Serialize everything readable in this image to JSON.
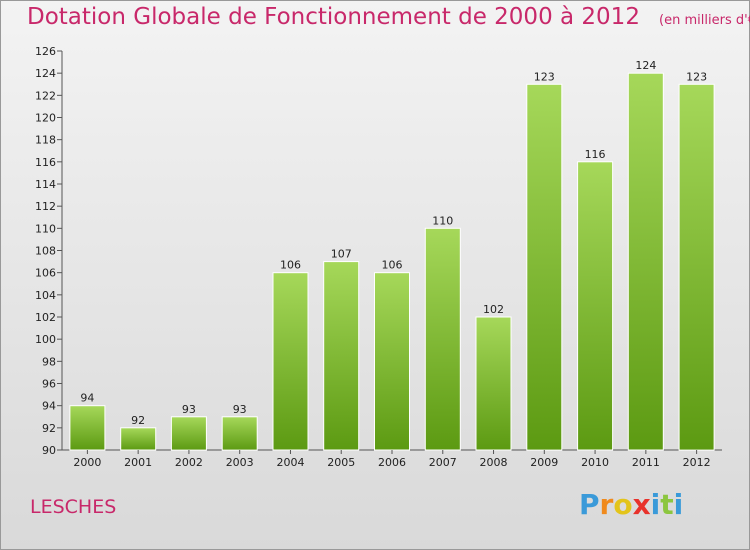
{
  "title": "Dotation Globale de Fonctionnement de 2000 à 2012",
  "subtitle": "(en milliers d'€)",
  "commune": "LESCHES",
  "logo": {
    "letters": [
      "P",
      "r",
      "o",
      "x",
      "i",
      "t",
      "i"
    ],
    "colors": [
      "#3a9ad9",
      "#f08a1c",
      "#e3c41a",
      "#e8322b",
      "#3a9ad9",
      "#8cc63f",
      "#3a9ad9"
    ]
  },
  "colors": {
    "bar_top": "#a6d85a",
    "bar_bottom": "#5c9a12",
    "title": "#c8286a"
  },
  "chart_data": {
    "type": "bar",
    "categories": [
      "2000",
      "2001",
      "2002",
      "2003",
      "2004",
      "2005",
      "2006",
      "2007",
      "2008",
      "2009",
      "2010",
      "2011",
      "2012"
    ],
    "values": [
      94,
      92,
      93,
      93,
      106,
      107,
      106,
      110,
      102,
      123,
      116,
      124,
      123
    ],
    "data_labels": [
      "94",
      "92",
      "93",
      "93",
      "106",
      "107",
      "106",
      "110",
      "102",
      "123",
      "116",
      "124",
      "123"
    ],
    "ylim": [
      90,
      126
    ],
    "yticks": [
      90,
      92,
      94,
      96,
      98,
      100,
      102,
      104,
      106,
      108,
      110,
      112,
      114,
      116,
      118,
      120,
      122,
      124,
      126
    ],
    "grid": false
  }
}
